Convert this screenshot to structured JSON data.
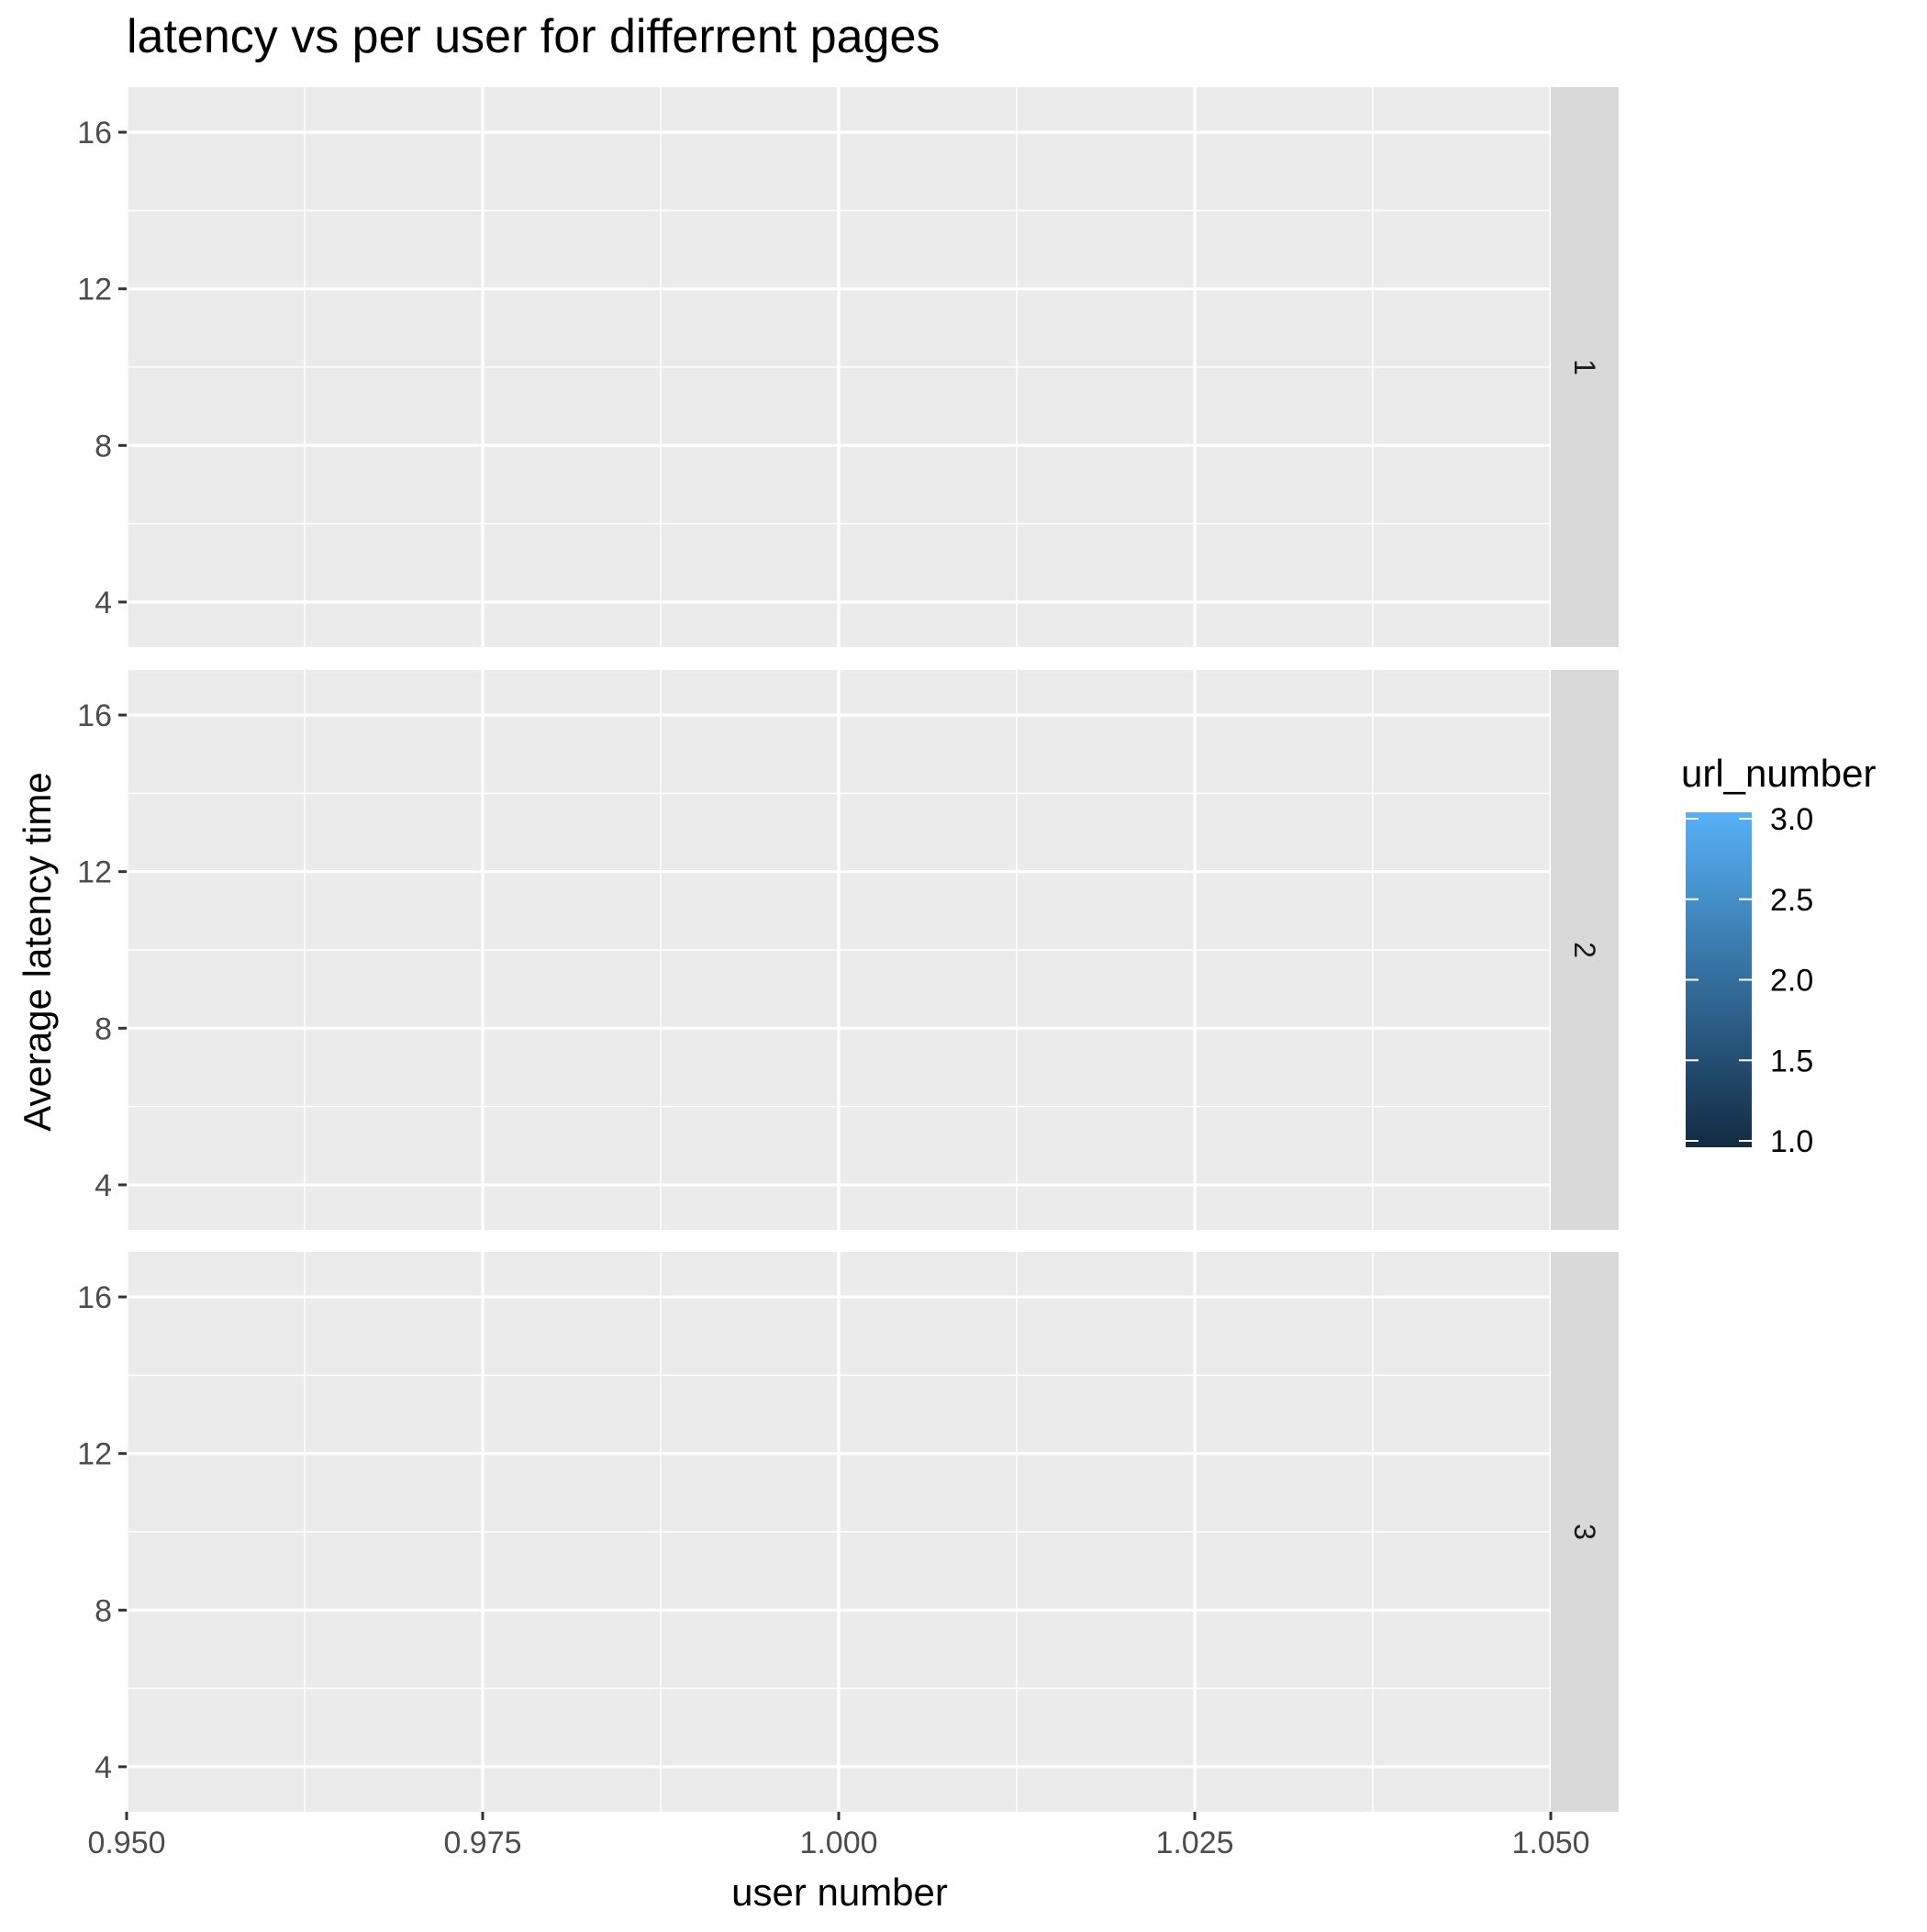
{
  "chart_data": {
    "type": "scatter",
    "title": "latency vs per user for differrent pages",
    "xlabel": "user number",
    "ylabel": "Average latency time",
    "xlim": [
      0.95,
      1.05
    ],
    "ylim": [
      2.85,
      17.15
    ],
    "x_ticks": [
      "0.950",
      "0.975",
      "1.000",
      "1.025",
      "1.050"
    ],
    "y_ticks": [
      "4",
      "8",
      "12",
      "16"
    ],
    "facets": [
      "1",
      "2",
      "3"
    ],
    "facet_strip_position": "right",
    "series": [],
    "grid": true,
    "legend": {
      "title": "url_number",
      "type": "colorbar",
      "placement": "right",
      "range": [
        1.0,
        3.0
      ],
      "labels": [
        "3.0",
        "2.5",
        "2.0",
        "1.5",
        "1.0"
      ],
      "colors": {
        "low": "#132B43",
        "high": "#56B1F7"
      }
    },
    "colors": {
      "panel_background": "#EBEBEB",
      "grid_major": "#FFFFFF",
      "strip_background": "#D9D9D9",
      "axis_text": "#4D4D4D",
      "text": "#000000"
    }
  }
}
